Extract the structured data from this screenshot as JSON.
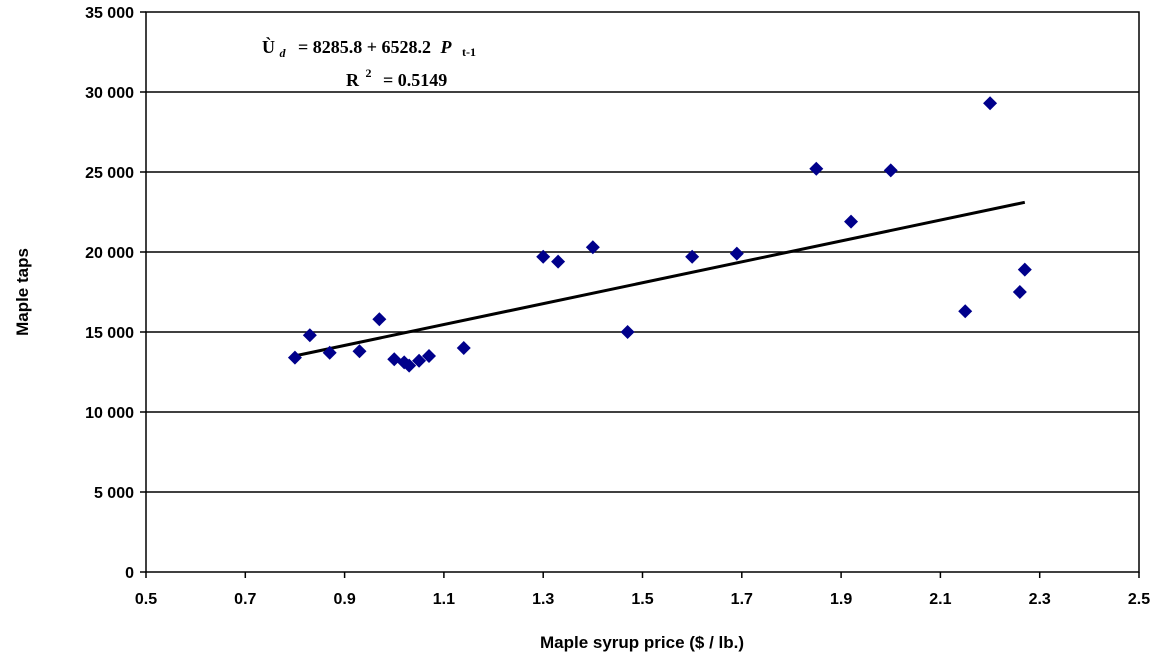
{
  "chart_data": {
    "type": "scatter",
    "title": "",
    "xlabel": "Maple syrup price ($ / lb.)",
    "ylabel": "Maple taps",
    "xlim": [
      0.5,
      2.5
    ],
    "ylim": [
      0,
      35000
    ],
    "x_ticks": [
      "0.5",
      "0.7",
      "0.9",
      "1.1",
      "1.3",
      "1.5",
      "1.7",
      "1.9",
      "2.1",
      "2.3",
      "2.5"
    ],
    "y_ticks": [
      "0",
      "5 000",
      "10 000",
      "15 000",
      "20 000",
      "25 000",
      "30 000",
      "35 000"
    ],
    "grid": "horizontal",
    "marker_color": "#00008B",
    "trendline_color": "#000000",
    "points": [
      {
        "x": 0.8,
        "y": 13400
      },
      {
        "x": 0.83,
        "y": 14800
      },
      {
        "x": 0.87,
        "y": 13700
      },
      {
        "x": 0.93,
        "y": 13800
      },
      {
        "x": 0.97,
        "y": 15800
      },
      {
        "x": 1.0,
        "y": 13300
      },
      {
        "x": 1.02,
        "y": 13100
      },
      {
        "x": 1.03,
        "y": 12900
      },
      {
        "x": 1.05,
        "y": 13200
      },
      {
        "x": 1.07,
        "y": 13500
      },
      {
        "x": 1.14,
        "y": 14000
      },
      {
        "x": 1.3,
        "y": 19700
      },
      {
        "x": 1.33,
        "y": 19400
      },
      {
        "x": 1.4,
        "y": 20300
      },
      {
        "x": 1.47,
        "y": 15000
      },
      {
        "x": 1.6,
        "y": 19700
      },
      {
        "x": 1.69,
        "y": 19900
      },
      {
        "x": 1.85,
        "y": 25200
      },
      {
        "x": 1.92,
        "y": 21900
      },
      {
        "x": 2.0,
        "y": 25100
      },
      {
        "x": 2.15,
        "y": 16300
      },
      {
        "x": 2.2,
        "y": 29300
      },
      {
        "x": 2.26,
        "y": 17500
      },
      {
        "x": 2.27,
        "y": 18900
      }
    ],
    "trendline": {
      "intercept": 8285.8,
      "slope": 6528.2,
      "x_start": 0.8,
      "x_end": 2.27
    },
    "annotation": {
      "lhs": "Ù",
      "lhs_sub": "d",
      "rhs_main": "= 8285.8 + 6528.2",
      "rhs_var": "P",
      "rhs_sub": "t-1",
      "r2_label": "R",
      "r2_sup": "2",
      "r2_value": "= 0.5149"
    }
  }
}
